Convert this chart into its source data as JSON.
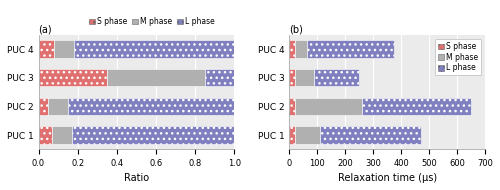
{
  "categories": [
    "PUC 1",
    "PUC 2",
    "PUC 3",
    "PUC 4"
  ],
  "ratio": {
    "S": [
      0.07,
      0.05,
      0.35,
      0.08
    ],
    "M": [
      0.1,
      0.1,
      0.5,
      0.1
    ],
    "L": [
      0.83,
      0.85,
      0.15,
      0.82
    ]
  },
  "relax": {
    "S": [
      20,
      20,
      20,
      20
    ],
    "M": [
      90,
      240,
      70,
      45
    ],
    "L": [
      360,
      390,
      160,
      310
    ]
  },
  "colors": {
    "S": "#e07070",
    "M": "#b0b0b0",
    "L": "#8080c0"
  },
  "hatch": {
    "S": "...",
    "M": "",
    "L": "..."
  },
  "title_a": "(a)",
  "title_b": "(b)",
  "xlabel_a": "Ratio",
  "xlabel_b": "Relaxation time (μs)",
  "xlim_a": [
    0,
    1.0
  ],
  "xlim_b": [
    0,
    700
  ],
  "xticks_a": [
    0,
    0.2,
    0.4,
    0.6,
    0.8,
    1.0
  ],
  "xticks_b": [
    0,
    100,
    200,
    300,
    400,
    500,
    600,
    700
  ],
  "bg_color": "#ebebeb"
}
